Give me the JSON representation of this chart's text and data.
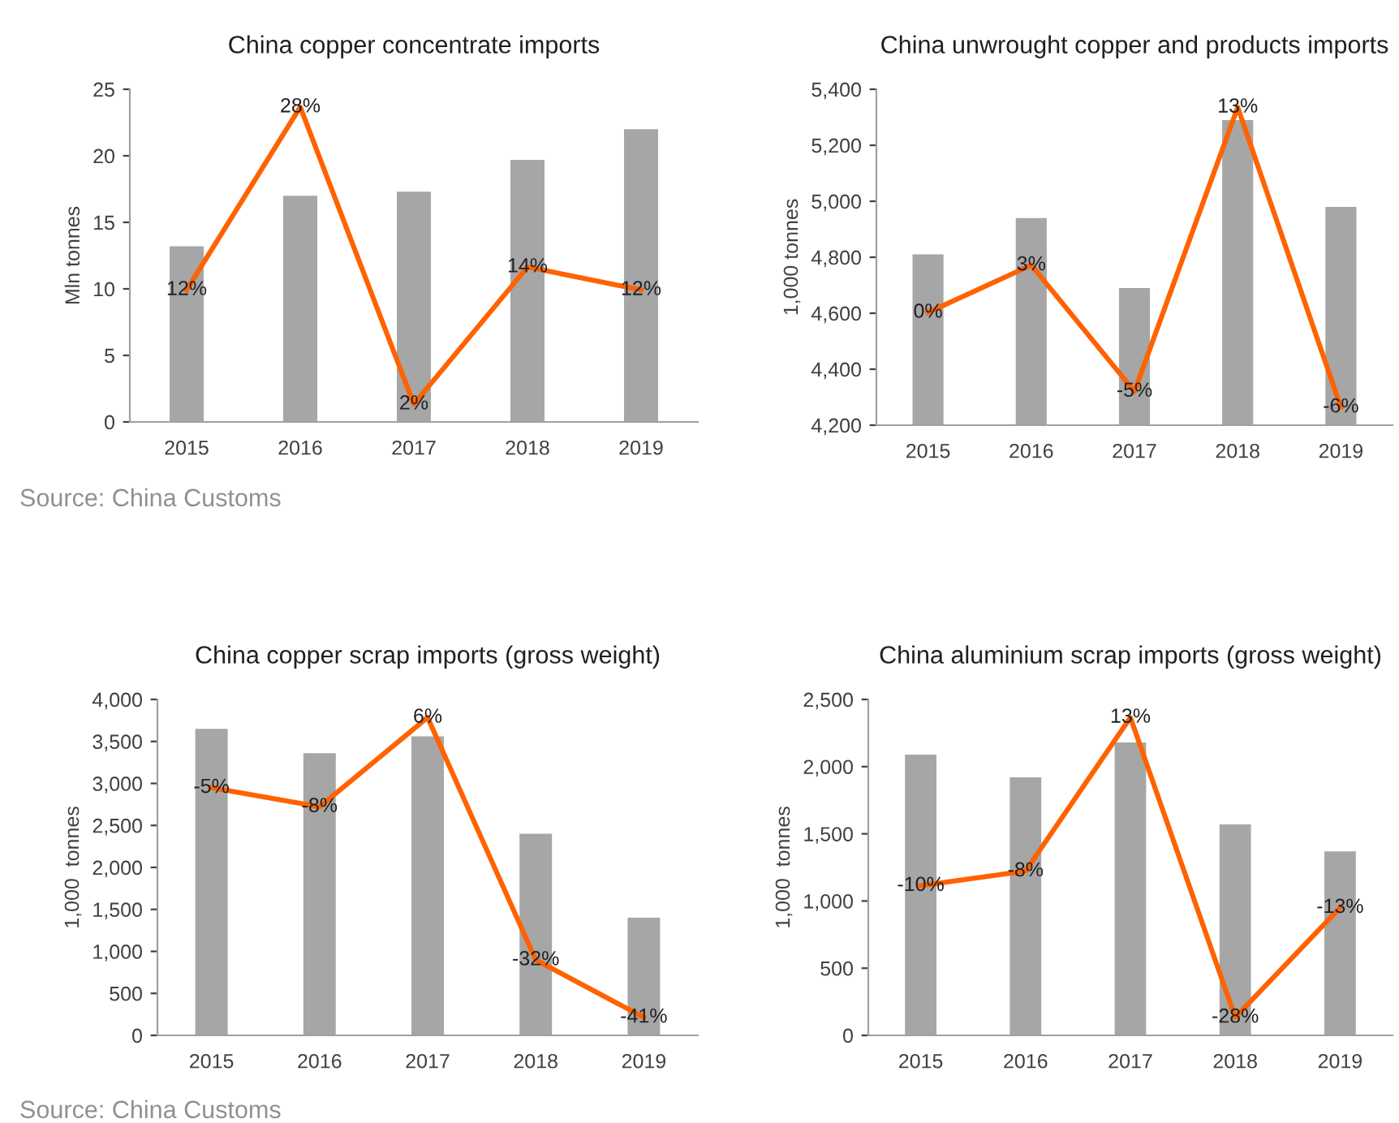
{
  "chart_data": [
    {
      "type": "bar",
      "title": "China copper concentrate imports",
      "ylabel": "Mln tonnes",
      "marker": "none",
      "line_style": "solid",
      "categories": [
        "2015",
        "2016",
        "2017",
        "2018",
        "2019"
      ],
      "ylim": [
        0,
        25
      ],
      "yticks": [
        0,
        5,
        10,
        15,
        20,
        25
      ],
      "grid": false,
      "legend": false,
      "annotations": [
        "Source: China Customs"
      ],
      "series": [
        {
          "color": "#a6a6a6",
          "values": [
            13.2,
            17.0,
            17.3,
            19.7,
            22.0
          ]
        },
        {
          "type": "line",
          "axis": "y2",
          "color": "#ff6200",
          "values": [
            12,
            28,
            2,
            14,
            12
          ],
          "value_labels": [
            "12%",
            "28%",
            "2%",
            "14%",
            "12%"
          ]
        }
      ]
    },
    {
      "type": "bar",
      "title": "China unwrought copper and products imports",
      "ylabel": "1,000 tonnes",
      "marker": "none",
      "line_style": "solid",
      "categories": [
        "2015",
        "2016",
        "2017",
        "2018",
        "2019"
      ],
      "ylim": [
        4200,
        5400
      ],
      "yticks": [
        {
          "value": 4200,
          "label": "4,200"
        },
        {
          "value": 4400,
          "label": "4,400"
        },
        {
          "value": 4600,
          "label": "4,600"
        },
        {
          "value": 4800,
          "label": "4,800"
        },
        {
          "value": 5000,
          "label": "5,000"
        },
        {
          "value": 5200,
          "label": "5,200"
        },
        {
          "value": 5400,
          "label": "5,400"
        }
      ],
      "grid": false,
      "legend": false,
      "series": [
        {
          "color": "#a6a6a6",
          "values": [
            4810,
            4940,
            4690,
            5290,
            4980
          ]
        },
        {
          "type": "line",
          "axis": "y2",
          "color": "#ff6200",
          "values": [
            0,
            3,
            -5,
            13,
            -6
          ],
          "value_labels": [
            "0%",
            "3%",
            "-5%",
            "13%",
            "-6%"
          ]
        }
      ]
    },
    {
      "type": "bar",
      "title": "China copper scrap imports (gross weight)",
      "ylabel": "1,000  tonnes",
      "marker": "none",
      "line_style": "solid",
      "categories": [
        "2015",
        "2016",
        "2017",
        "2018",
        "2019"
      ],
      "ylim": [
        0,
        4000
      ],
      "yticks": [
        0,
        500,
        {
          "value": 1000,
          "label": "1,000"
        },
        {
          "value": 1500,
          "label": "1,500"
        },
        {
          "value": 2000,
          "label": "2,000"
        },
        {
          "value": 2500,
          "label": "2,500"
        },
        {
          "value": 3000,
          "label": "3,000"
        },
        {
          "value": 3500,
          "label": "3,500"
        },
        {
          "value": 4000,
          "label": "4,000"
        }
      ],
      "grid": false,
      "legend": false,
      "annotations": [
        "Source: China Customs"
      ],
      "series": [
        {
          "color": "#a6a6a6",
          "values": [
            3650,
            3360,
            3560,
            2400,
            1400
          ]
        },
        {
          "type": "line",
          "axis": "y2",
          "color": "#ff6200",
          "values": [
            -5,
            -8,
            6,
            -32,
            -41
          ],
          "value_labels": [
            "-5%",
            "-8%",
            "6%",
            "-32%",
            "-41%"
          ]
        }
      ]
    },
    {
      "type": "bar",
      "title": "China aluminium scrap imports (gross weight)",
      "ylabel": "1,000  tonnes",
      "marker": "none",
      "line_style": "solid",
      "categories": [
        "2015",
        "2016",
        "2017",
        "2018",
        "2019"
      ],
      "ylim": [
        0,
        2500
      ],
      "yticks": [
        0,
        500,
        {
          "value": 1000,
          "label": "1,000"
        },
        {
          "value": 1500,
          "label": "1,500"
        },
        {
          "value": 2000,
          "label": "2,000"
        },
        {
          "value": 2500,
          "label": "2,500"
        }
      ],
      "grid": false,
      "legend": false,
      "series": [
        {
          "color": "#a6a6a6",
          "values": [
            2090,
            1920,
            2180,
            1570,
            1370
          ]
        },
        {
          "type": "line",
          "axis": "y2",
          "color": "#ff6200",
          "values": [
            -10,
            -8,
            13,
            -28,
            -13
          ],
          "value_labels": [
            "-10%",
            "-8%",
            "13%",
            "-28%",
            "-13%"
          ]
        }
      ]
    }
  ]
}
